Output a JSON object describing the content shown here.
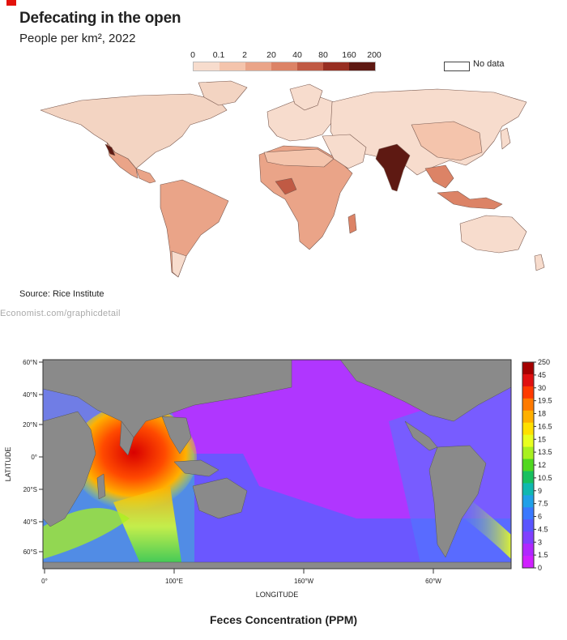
{
  "top_figure": {
    "title": "Defecating in the open",
    "subtitle": "People per km², 2022",
    "legend": {
      "labels": [
        "0",
        "0.1",
        "2",
        "20",
        "40",
        "80",
        "160",
        "200"
      ],
      "colors": [
        "#f7dccd",
        "#f4c4ac",
        "#eaa488",
        "#dc8366",
        "#c05a44",
        "#972f22",
        "#5e1912"
      ],
      "no_data_label": "No data"
    },
    "source": "Source: Rice Institute",
    "publisher": "Economist.com/graphicdetail"
  },
  "bottom_figure": {
    "y_ticks": [
      "60°N",
      "40°N",
      "20°N",
      "0°",
      "20°S",
      "40°S",
      "60°S"
    ],
    "x_ticks": [
      "0°",
      "100°E",
      "160°W",
      "60°W"
    ],
    "y_axis_label": "LATITUDE",
    "x_axis_label": "LONGITUDE",
    "colorbar_labels": [
      "250",
      "45",
      "30",
      "19.5",
      "18",
      "16.5",
      "15",
      "13.5",
      "12",
      "10.5",
      "9",
      "7.5",
      "6",
      "4.5",
      "3",
      "1.5",
      "0"
    ],
    "colorbar_colors": [
      "#a50000",
      "#e01010",
      "#ff3a00",
      "#ff7a00",
      "#ffb000",
      "#ffe000",
      "#e8ff20",
      "#a8f020",
      "#50d820",
      "#18c060",
      "#10b8b0",
      "#20a0e8",
      "#3a78ff",
      "#5a55ff",
      "#8040ff",
      "#b028ff",
      "#d020ff"
    ],
    "caption": "Feces Concentration (PPM)"
  }
}
